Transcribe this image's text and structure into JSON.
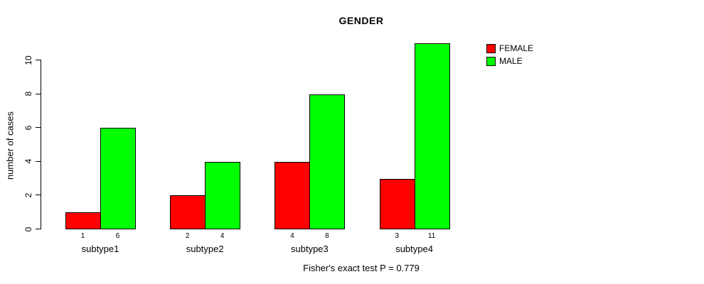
{
  "chart_data": {
    "type": "bar",
    "title": "GENDER",
    "xlabel": "",
    "ylabel": "number of cases",
    "categories": [
      "subtype1",
      "subtype2",
      "subtype3",
      "subtype4"
    ],
    "series": [
      {
        "name": "FEMALE",
        "color": "#ff0000",
        "values": [
          1,
          2,
          4,
          3
        ]
      },
      {
        "name": "MALE",
        "color": "#00ff00",
        "values": [
          6,
          4,
          8,
          11
        ]
      }
    ],
    "y_ticks": [
      0,
      2,
      4,
      6,
      8,
      10
    ],
    "ylim": [
      0,
      11
    ],
    "grid": false,
    "bar_border_color": "#000000",
    "show_values_under_bars": true,
    "legend_position": "top-right-outside",
    "annotation": "Fisher's exact test P = 0.779"
  }
}
